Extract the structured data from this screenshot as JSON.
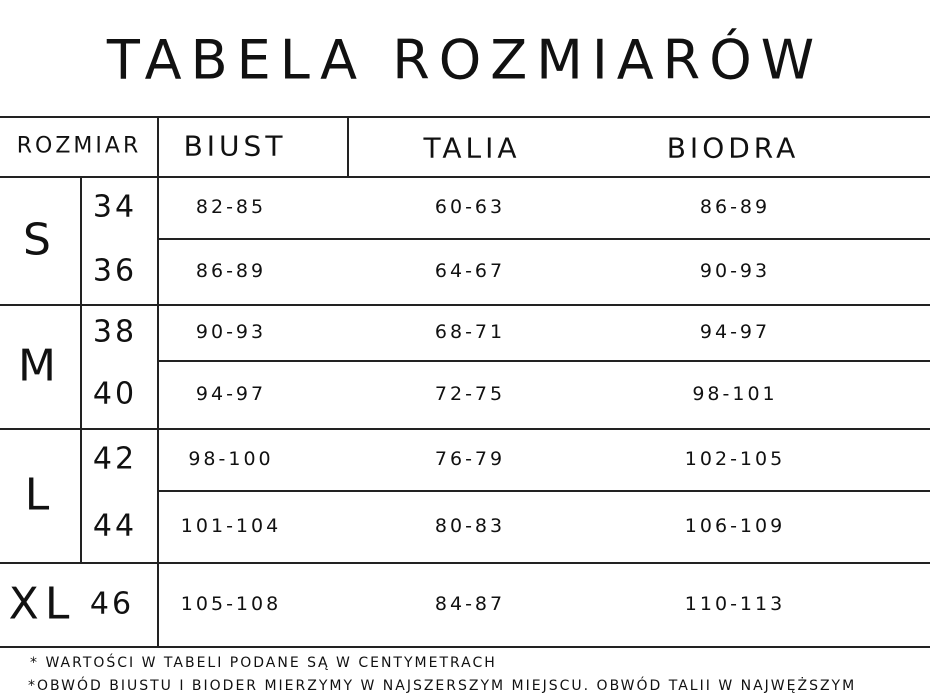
{
  "header": {
    "title": "TABELA ROZMIARÓW"
  },
  "table": {
    "columns": [
      "ROZMIAR",
      "BIUST",
      "TALIA",
      "BIODRA"
    ],
    "groups": [
      {
        "size": "S",
        "rows": [
          [
            "34",
            "82-85",
            "60-63",
            "86-89"
          ],
          [
            "36",
            "86-89",
            "64-67",
            "90-93"
          ]
        ]
      },
      {
        "size": "M",
        "rows": [
          [
            "38",
            "90-93",
            "68-71",
            "94-97"
          ],
          [
            "40",
            "94-97",
            "72-75",
            "98-101"
          ]
        ]
      },
      {
        "size": "L",
        "rows": [
          [
            "42",
            "98-100",
            "76-79",
            "102-105"
          ],
          [
            "44",
            "101-104",
            "80-83",
            "106-109"
          ]
        ]
      },
      {
        "size": "XL",
        "rows": [
          [
            "46",
            "105-108",
            "84-87",
            "110-113"
          ]
        ]
      }
    ]
  },
  "footnotes": [
    "* WARTOŚCI W TABELI PODANE SĄ W CENTYMETRACH",
    "*OBWÓD BIUSTU I BIODER MIERZYMY W NAJSZERSZYM MIEJSCU. OBWÓD TALII W NAJWĘŻSZYM"
  ]
}
